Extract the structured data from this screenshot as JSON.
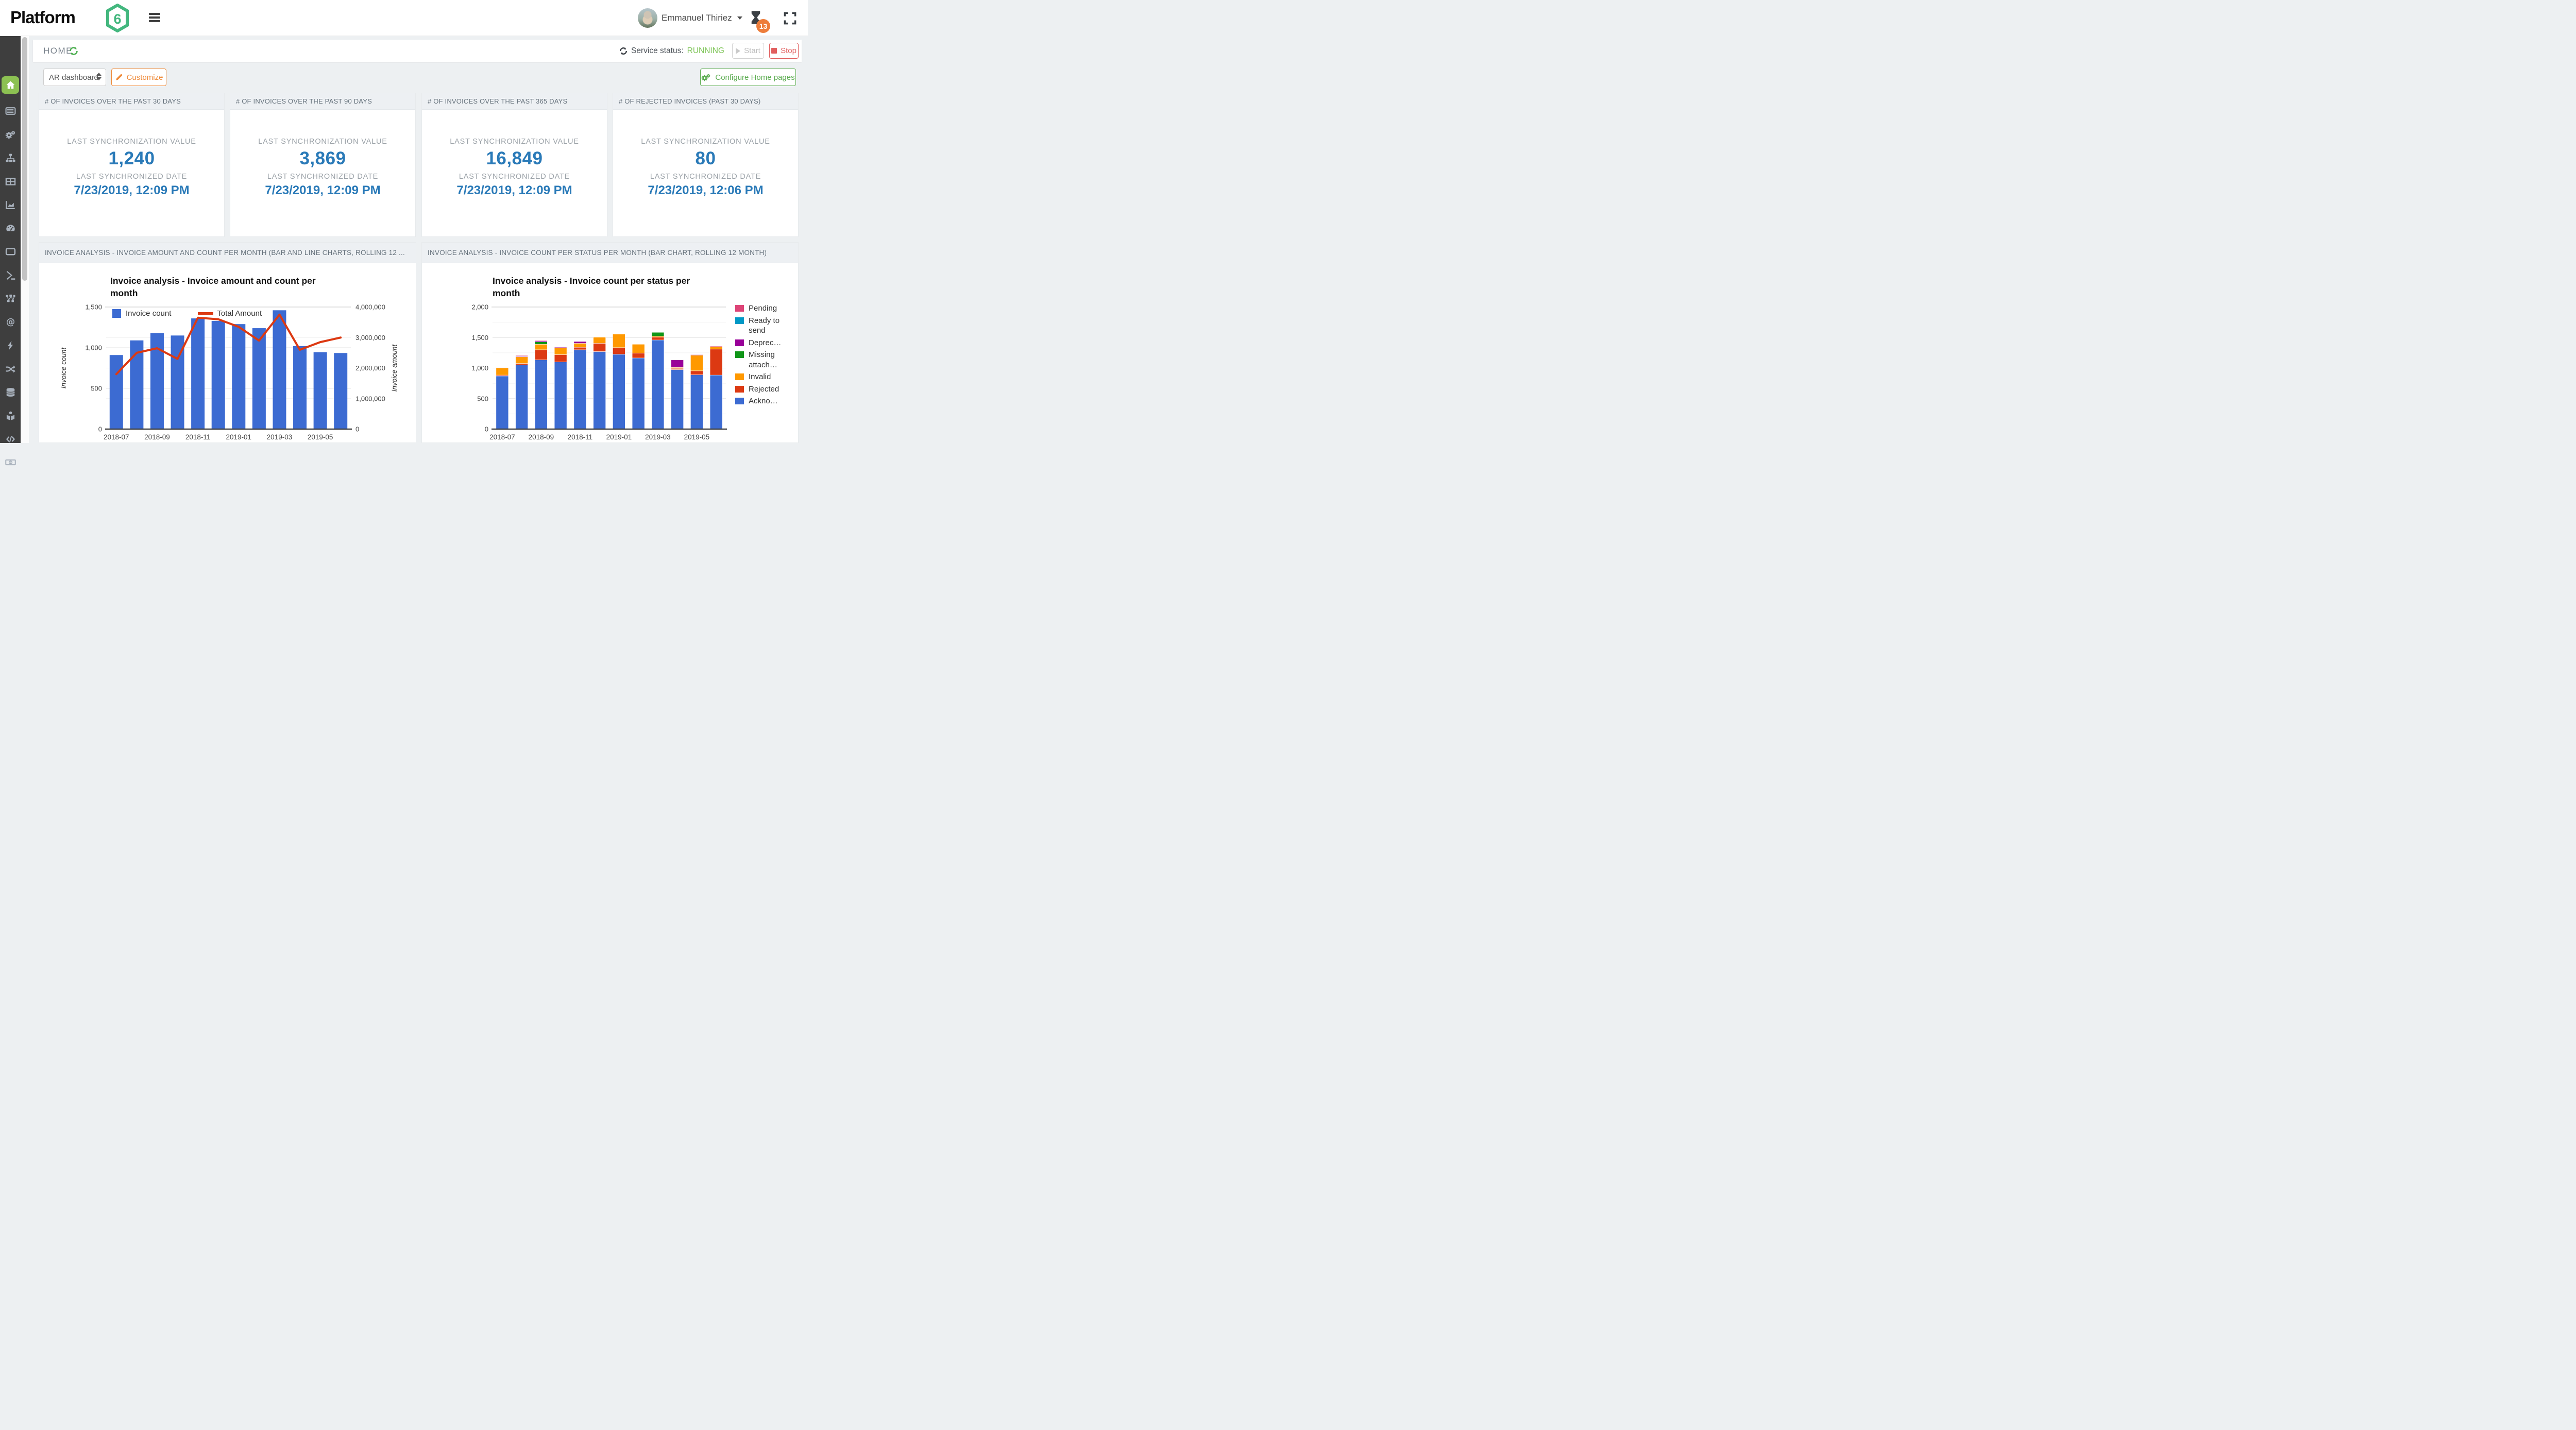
{
  "topbar": {
    "logo_text": "Platform",
    "logo_digit": "6",
    "user_name": "Emmanuel Thiriez",
    "notification_badge": "13"
  },
  "sidebar": {
    "icons": [
      "home",
      "list",
      "gears",
      "sitemap",
      "table",
      "area-chart",
      "gauge",
      "window",
      "terminal",
      "workflow",
      "at-sign",
      "bolt",
      "shuffle",
      "database",
      "podium",
      "code",
      "banknote"
    ],
    "active": "home"
  },
  "home": {
    "title": "HOME",
    "service_status_label": "Service status:",
    "service_status_value": "RUNNING",
    "start_label": "Start",
    "stop_label": "Stop"
  },
  "toolbar": {
    "dashboard_selected": "AR dashboard",
    "customize_label": "Customize",
    "configure_label": "Configure Home pages"
  },
  "cards": [
    {
      "header": "# OF INVOICES OVER THE PAST 30 DAYS",
      "value_label": "LAST SYNCHRONIZATION VALUE",
      "value": "1,240",
      "date_label": "LAST SYNCHRONIZED DATE",
      "date": "7/23/2019, 12:09 PM"
    },
    {
      "header": "# OF INVOICES OVER THE PAST 90 DAYS",
      "value_label": "LAST SYNCHRONIZATION VALUE",
      "value": "3,869",
      "date_label": "LAST SYNCHRONIZED DATE",
      "date": "7/23/2019, 12:09 PM"
    },
    {
      "header": "# OF INVOICES OVER THE PAST 365 DAYS",
      "value_label": "LAST SYNCHRONIZATION VALUE",
      "value": "16,849",
      "date_label": "LAST SYNCHRONIZED DATE",
      "date": "7/23/2019, 12:09 PM"
    },
    {
      "header": "# OF REJECTED INVOICES (PAST 30 DAYS)",
      "value_label": "LAST SYNCHRONIZATION VALUE",
      "value": "80",
      "date_label": "LAST SYNCHRONIZED DATE",
      "date": "7/23/2019, 12:06 PM"
    }
  ],
  "panels": {
    "left_header": "INVOICE ANALYSIS - INVOICE AMOUNT AND COUNT PER MONTH (BAR AND LINE CHARTS, ROLLING 12 ...",
    "right_header": "INVOICE ANALYSIS - INVOICE COUNT PER STATUS PER MONTH (BAR CHART, ROLLING 12 MONTH)"
  },
  "chart_data": [
    {
      "type": "bar+line",
      "title": "Invoice analysis - Invoice amount and count per month",
      "categories": [
        "2018-07",
        "2018-08",
        "2018-09",
        "2018-10",
        "2018-11",
        "2018-12",
        "2019-01",
        "2019-02",
        "2019-03",
        "2019-04",
        "2019-05",
        "2019-06"
      ],
      "series": [
        {
          "name": "Invoice count",
          "type": "bar",
          "axis": "left",
          "color": "#3C6BD2",
          "values": [
            910,
            1090,
            1180,
            1150,
            1360,
            1330,
            1290,
            1240,
            1460,
            1020,
            945,
            935
          ]
        },
        {
          "name": "Total Amount",
          "type": "line",
          "axis": "right",
          "color": "#DC3912",
          "values": [
            1800000,
            2500000,
            2650000,
            2300000,
            3650000,
            3600000,
            3350000,
            2900000,
            3750000,
            2600000,
            2850000,
            3000000
          ]
        }
      ],
      "ylabel_left": "Invoice count",
      "ylabel_right": "Invoice amount",
      "ylim_left": [
        0,
        1500
      ],
      "ylim_right": [
        0,
        4000000
      ],
      "yticks_left": [
        0,
        500,
        1000,
        1500
      ],
      "yticks_right": [
        0,
        1000000,
        2000000,
        3000000,
        4000000
      ],
      "xtick_labels": [
        "2018-07",
        "2018-09",
        "2018-11",
        "2019-01",
        "2019-03",
        "2019-05"
      ],
      "legend_position": "top-inside",
      "grid": true
    },
    {
      "type": "stacked-bar",
      "title": "Invoice analysis - Invoice count per status per month",
      "categories": [
        "2018-07",
        "2018-08",
        "2018-09",
        "2018-10",
        "2018-11",
        "2018-12",
        "2019-01",
        "2019-02",
        "2019-03",
        "2019-04",
        "2019-05",
        "2019-06"
      ],
      "series": [
        {
          "name": "Pending",
          "color": "#DD4477",
          "values": [
            10,
            10,
            10,
            0,
            0,
            0,
            0,
            0,
            5,
            5,
            5,
            10
          ]
        },
        {
          "name": "Ready to send",
          "color": "#0099C6",
          "values": [
            0,
            0,
            0,
            0,
            0,
            0,
            0,
            0,
            0,
            0,
            0,
            0
          ]
        },
        {
          "name": "Deprec…",
          "color": "#990099",
          "values": [
            5,
            10,
            15,
            10,
            30,
            0,
            0,
            0,
            0,
            125,
            10,
            0
          ]
        },
        {
          "name": "Missing attach…",
          "color": "#109618",
          "values": [
            0,
            0,
            40,
            0,
            0,
            0,
            0,
            0,
            65,
            0,
            0,
            0
          ]
        },
        {
          "name": "Invalid",
          "color": "#FF9900",
          "values": [
            120,
            110,
            90,
            115,
            65,
            100,
            220,
            145,
            15,
            15,
            255,
            40
          ]
        },
        {
          "name": "Rejected",
          "color": "#DC3912",
          "values": [
            15,
            25,
            165,
            120,
            40,
            135,
            110,
            80,
            45,
            20,
            65,
            425
          ]
        },
        {
          "name": "Ackno…",
          "color": "#3C6BD2",
          "values": [
            870,
            1050,
            1135,
            1100,
            1300,
            1270,
            1225,
            1165,
            1460,
            975,
            890,
            885
          ]
        }
      ],
      "stack_order_bottom_to_top": [
        "Ackno…",
        "Rejected",
        "Invalid",
        "Missing attach…",
        "Deprec…",
        "Ready to send",
        "Pending"
      ],
      "ylim": [
        0,
        2000
      ],
      "yticks": [
        0,
        500,
        1000,
        1500,
        2000
      ],
      "xtick_labels": [
        "2018-07",
        "2018-09",
        "2018-11",
        "2019-01",
        "2019-03",
        "2019-05"
      ],
      "legend_position": "right",
      "grid": true
    }
  ],
  "colors": {
    "brand_green": "#43b77e",
    "sidebar_active_green": "#8cc152",
    "stat_blue": "#2a7ab8",
    "running_green": "#7cc455",
    "customize_orange": "#ef8b3a",
    "stop_red": "#e15e5e",
    "configure_green": "#5dad52",
    "badge_orange": "#ED7D3B"
  }
}
